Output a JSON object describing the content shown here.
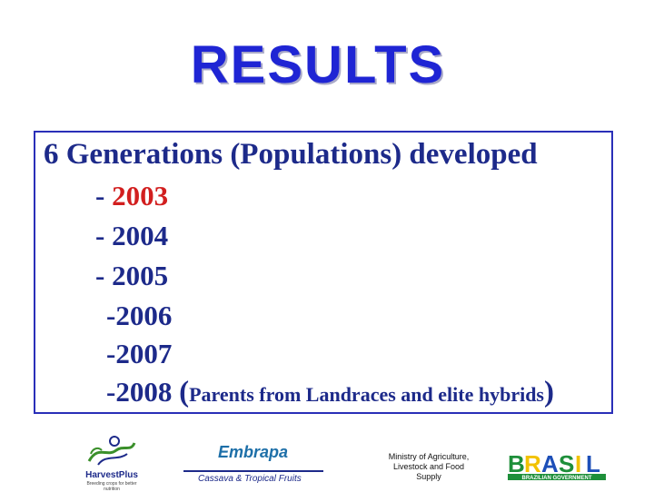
{
  "title": "RESULTS",
  "heading": "6 Generations (Populations) developed",
  "generations": [
    {
      "prefix": "- ",
      "year": "2003",
      "color": "#d21f1f"
    },
    {
      "prefix": "- ",
      "year": "2004",
      "color": "#1d2a8a"
    },
    {
      "prefix": "- ",
      "year": "2005",
      "color": "#1d2a8a"
    },
    {
      "prefix": "-",
      "year": "2006",
      "color": "#1d2a8a"
    },
    {
      "prefix": "-",
      "year": "2007",
      "color": "#1d2a8a"
    },
    {
      "prefix": "-",
      "year": "2008",
      "color": "#1d2a8a"
    }
  ],
  "note": {
    "open": "(",
    "text": "Parents from Landraces and elite hybrids",
    "close": ")"
  },
  "footer": {
    "harvestplus": {
      "name": "HarvestPlus",
      "tagline": "Breeding crops for better nutrition"
    },
    "embrapa": {
      "name": "Embrapa",
      "subtitle": "Cassava & Tropical Fruits"
    },
    "ministry": [
      "Ministry of Agriculture,",
      "Livestock and Food",
      "Supply"
    ],
    "brasil": {
      "letters": [
        "B",
        "R",
        "A",
        "S",
        "I",
        "L"
      ],
      "caption": "BRAZILIAN GOVERNMENT"
    }
  },
  "colors": {
    "title": "#1f25d4",
    "text": "#1d2a8a",
    "highlight": "#d21f1f",
    "border": "#2a2fb8"
  }
}
